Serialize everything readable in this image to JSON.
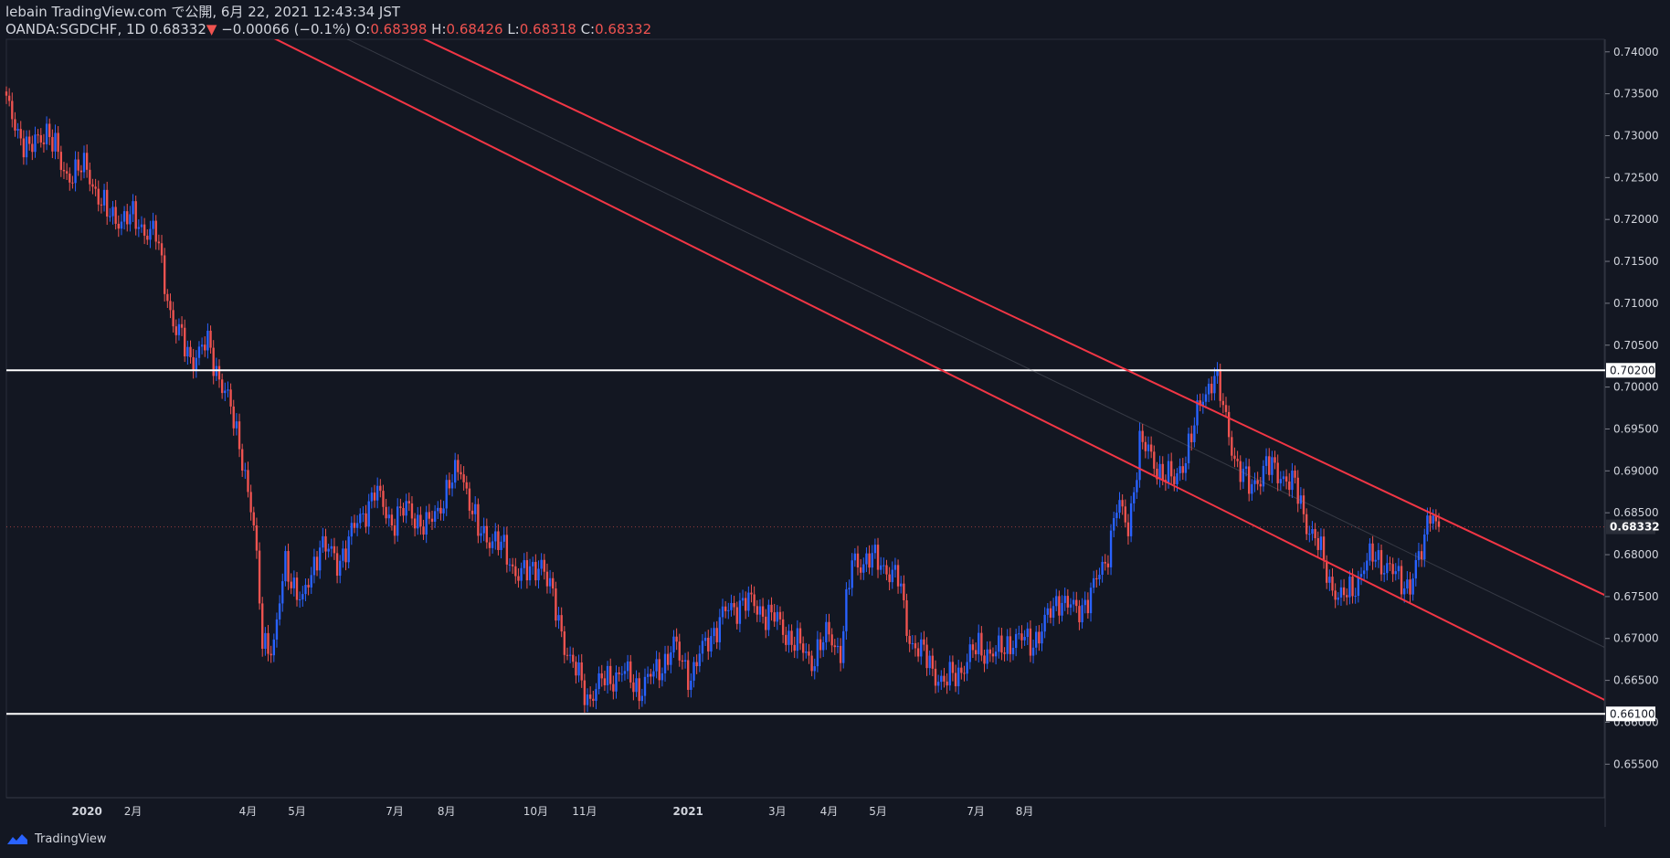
{
  "header": {
    "line1": "lebain TradingView.com で公開, 6月 22, 2021 12:43:34 JST",
    "symbol": "OANDA:SGDCHF, 1D",
    "last": "0.68332",
    "change_arrow": "▼",
    "change": "−0.00066 (−0.1%)",
    "o_label": "O:",
    "o": "0.68398",
    "h_label": "H:",
    "h": "0.68426",
    "l_label": "L:",
    "l": "0.68318",
    "c_label": "C:",
    "c": "0.68332"
  },
  "footer": {
    "brand": "TradingView"
  },
  "colors": {
    "background": "#131722",
    "up": "#2962ff",
    "down": "#ef5350",
    "trend": "#f23645",
    "level": "#ffffff",
    "text": "#d1d4dc"
  },
  "chart_data": {
    "type": "candlestick",
    "y_ticks": [
      "0.74000",
      "0.73500",
      "0.73000",
      "0.72500",
      "0.72000",
      "0.71500",
      "0.71000",
      "0.70500",
      "0.70000",
      "0.69500",
      "0.69000",
      "0.68500",
      "0.68000",
      "0.67500",
      "0.67000",
      "0.66500",
      "0.66000",
      "0.65500"
    ],
    "x_ticks": [
      "2020",
      "2月",
      "4月",
      "5月",
      "7月",
      "8月",
      "10月",
      "11月",
      "2021",
      "3月",
      "4月",
      "5月",
      "7月",
      "8月"
    ],
    "ylim": [
      0.651,
      0.7415
    ],
    "price_labels": [
      {
        "value": 0.702,
        "text": "0.70200",
        "style": "level"
      },
      {
        "value": 0.661,
        "text": "0.66100",
        "style": "level"
      },
      {
        "value": 0.68332,
        "text": "0.68332",
        "style": "last"
      }
    ],
    "horizontal_lines": [
      0.702,
      0.661
    ],
    "current_price": 0.68332,
    "anchors": [
      {
        "x": 0,
        "y": 0.7335
      },
      {
        "x": 8,
        "y": 0.728
      },
      {
        "x": 14,
        "y": 0.731
      },
      {
        "x": 20,
        "y": 0.7255
      },
      {
        "x": 28,
        "y": 0.726
      },
      {
        "x": 35,
        "y": 0.7205
      },
      {
        "x": 44,
        "y": 0.72
      },
      {
        "x": 52,
        "y": 0.718
      },
      {
        "x": 58,
        "y": 0.7075
      },
      {
        "x": 64,
        "y": 0.7035
      },
      {
        "x": 70,
        "y": 0.705
      },
      {
        "x": 76,
        "y": 0.6995
      },
      {
        "x": 82,
        "y": 0.692
      },
      {
        "x": 86,
        "y": 0.683
      },
      {
        "x": 89,
        "y": 0.67
      },
      {
        "x": 93,
        "y": 0.669
      },
      {
        "x": 97,
        "y": 0.679
      },
      {
        "x": 103,
        "y": 0.674
      },
      {
        "x": 109,
        "y": 0.6815
      },
      {
        "x": 115,
        "y": 0.679
      },
      {
        "x": 121,
        "y": 0.683
      },
      {
        "x": 128,
        "y": 0.6875
      },
      {
        "x": 134,
        "y": 0.684
      },
      {
        "x": 140,
        "y": 0.6855
      },
      {
        "x": 146,
        "y": 0.683
      },
      {
        "x": 153,
        "y": 0.6875
      },
      {
        "x": 158,
        "y": 0.6905
      },
      {
        "x": 164,
        "y": 0.6825
      },
      {
        "x": 170,
        "y": 0.682
      },
      {
        "x": 176,
        "y": 0.6785
      },
      {
        "x": 182,
        "y": 0.6775
      },
      {
        "x": 186,
        "y": 0.6795
      },
      {
        "x": 192,
        "y": 0.672
      },
      {
        "x": 196,
        "y": 0.6675
      },
      {
        "x": 202,
        "y": 0.663
      },
      {
        "x": 208,
        "y": 0.665
      },
      {
        "x": 214,
        "y": 0.666
      },
      {
        "x": 220,
        "y": 0.664
      },
      {
        "x": 226,
        "y": 0.666
      },
      {
        "x": 232,
        "y": 0.669
      },
      {
        "x": 238,
        "y": 0.6655
      },
      {
        "x": 244,
        "y": 0.67
      },
      {
        "x": 250,
        "y": 0.673
      },
      {
        "x": 256,
        "y": 0.6745
      },
      {
        "x": 262,
        "y": 0.6735
      },
      {
        "x": 268,
        "y": 0.672
      },
      {
        "x": 274,
        "y": 0.6695
      },
      {
        "x": 280,
        "y": 0.6675
      },
      {
        "x": 286,
        "y": 0.6705
      },
      {
        "x": 290,
        "y": 0.6685
      },
      {
        "x": 294,
        "y": 0.679
      },
      {
        "x": 300,
        "y": 0.6795
      },
      {
        "x": 306,
        "y": 0.6785
      },
      {
        "x": 310,
        "y": 0.677
      },
      {
        "x": 314,
        "y": 0.67
      },
      {
        "x": 320,
        "y": 0.6675
      },
      {
        "x": 326,
        "y": 0.6645
      },
      {
        "x": 332,
        "y": 0.6665
      },
      {
        "x": 338,
        "y": 0.669
      },
      {
        "x": 344,
        "y": 0.668
      },
      {
        "x": 350,
        "y": 0.67
      },
      {
        "x": 356,
        "y": 0.6695
      },
      {
        "x": 360,
        "y": 0.671
      },
      {
        "x": 366,
        "y": 0.675
      },
      {
        "x": 372,
        "y": 0.673
      },
      {
        "x": 378,
        "y": 0.676
      },
      {
        "x": 382,
        "y": 0.679
      },
      {
        "x": 386,
        "y": 0.686
      },
      {
        "x": 390,
        "y": 0.683
      },
      {
        "x": 394,
        "y": 0.6935
      },
      {
        "x": 400,
        "y": 0.6905
      },
      {
        "x": 406,
        "y": 0.6885
      },
      {
        "x": 412,
        "y": 0.694
      },
      {
        "x": 416,
        "y": 0.699
      },
      {
        "x": 420,
        "y": 0.7015
      },
      {
        "x": 424,
        "y": 0.696
      },
      {
        "x": 428,
        "y": 0.6905
      },
      {
        "x": 432,
        "y": 0.688
      },
      {
        "x": 438,
        "y": 0.6905
      },
      {
        "x": 444,
        "y": 0.6895
      },
      {
        "x": 448,
        "y": 0.688
      },
      {
        "x": 452,
        "y": 0.684
      },
      {
        "x": 456,
        "y": 0.681
      },
      {
        "x": 460,
        "y": 0.677
      },
      {
        "x": 464,
        "y": 0.6745
      },
      {
        "x": 468,
        "y": 0.676
      },
      {
        "x": 472,
        "y": 0.6785
      },
      {
        "x": 476,
        "y": 0.68
      },
      {
        "x": 480,
        "y": 0.6785
      },
      {
        "x": 484,
        "y": 0.677
      },
      {
        "x": 488,
        "y": 0.6765
      },
      {
        "x": 492,
        "y": 0.68
      },
      {
        "x": 495,
        "y": 0.686
      },
      {
        "x": 497,
        "y": 0.68398
      },
      {
        "x": 498,
        "y": 0.68332
      }
    ],
    "trend_lines": [
      {
        "name": "upper-channel",
        "p1": [
          0,
          0.765
        ],
        "p2": [
          498,
          0.6845
        ]
      },
      {
        "name": "lower-channel",
        "p1": [
          0,
          0.7575
        ],
        "p2": [
          498,
          0.6725
        ]
      },
      {
        "name": "mid-channel",
        "p1": [
          0,
          0.7612
        ],
        "p2": [
          498,
          0.6785
        ]
      }
    ]
  }
}
